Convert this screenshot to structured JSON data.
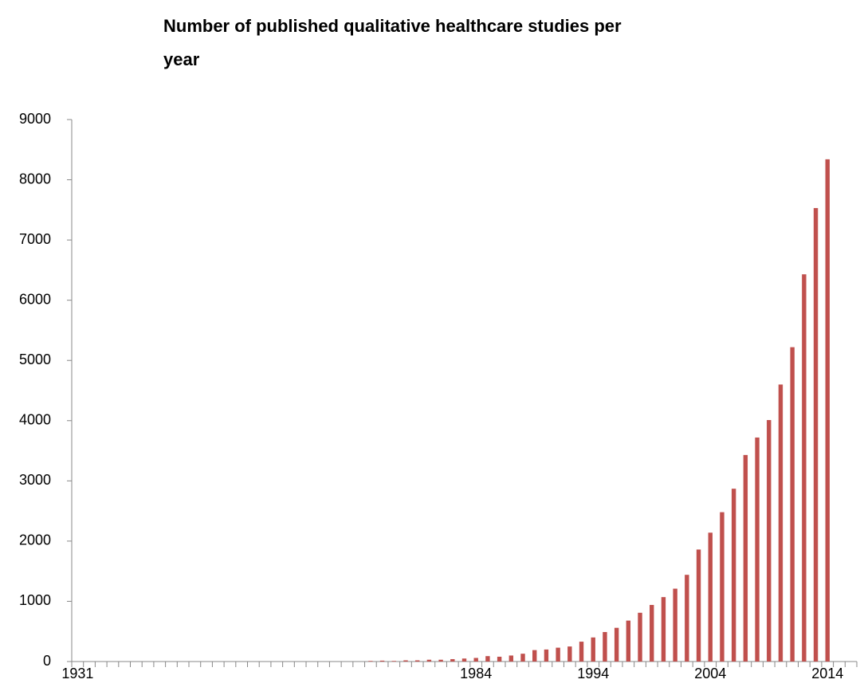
{
  "chart_data": {
    "type": "bar",
    "title": "Number of published qualitative healthcare studies per year",
    "categories": [
      "1931",
      null,
      null,
      null,
      null,
      null,
      null,
      null,
      null,
      null,
      null,
      null,
      null,
      null,
      null,
      null,
      null,
      null,
      null,
      null,
      null,
      null,
      null,
      null,
      null,
      null,
      null,
      null,
      null,
      null,
      null,
      null,
      null,
      null,
      "1984",
      null,
      null,
      null,
      null,
      null,
      null,
      null,
      null,
      null,
      "1994",
      null,
      null,
      null,
      null,
      null,
      null,
      null,
      null,
      null,
      "2004",
      null,
      null,
      null,
      null,
      null,
      null,
      null,
      null,
      null,
      "2014",
      null,
      null
    ],
    "values": [
      0,
      0,
      0,
      0,
      0,
      0,
      0,
      0,
      0,
      0,
      0,
      0,
      0,
      0,
      0,
      0,
      0,
      0,
      0,
      0,
      0,
      0,
      0,
      0,
      0,
      10,
      15,
      10,
      20,
      20,
      30,
      30,
      40,
      50,
      60,
      90,
      80,
      100,
      130,
      190,
      200,
      230,
      250,
      330,
      400,
      490,
      560,
      680,
      810,
      940,
      1070,
      1210,
      1440,
      1860,
      2140,
      2480,
      2870,
      3430,
      3720,
      4010,
      4600,
      5220,
      6430,
      7530,
      8340,
      0,
      0
    ],
    "color": "#c0504d",
    "ylim": [
      0,
      9000
    ],
    "yticks": [
      0,
      1000,
      2000,
      3000,
      4000,
      5000,
      6000,
      7000,
      8000,
      9000
    ],
    "grid": false
  }
}
